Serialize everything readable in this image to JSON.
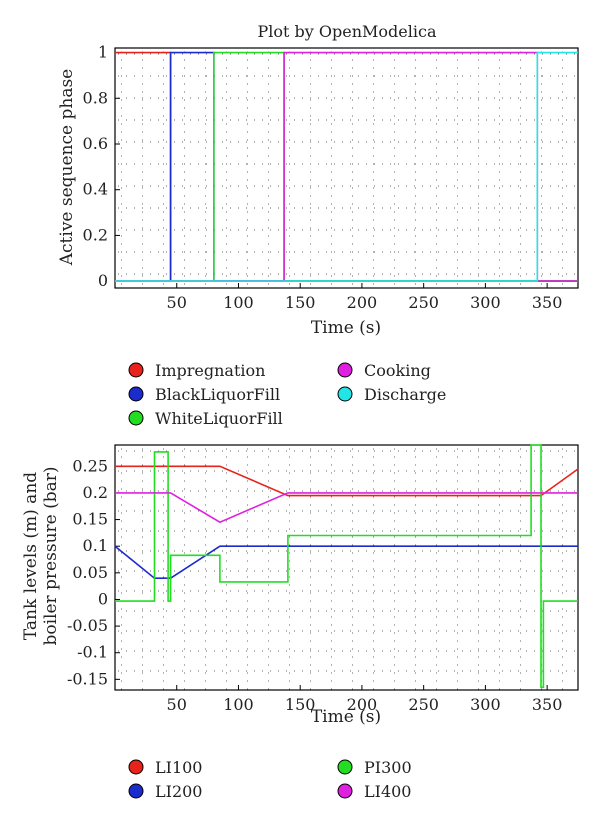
{
  "chart_data": [
    {
      "type": "line",
      "title": "Plot by OpenModelica",
      "xlabel": "Time (s)",
      "ylabel": "Active sequence phase",
      "xlim": [
        0,
        375
      ],
      "ylim": [
        -0.03,
        1.02
      ],
      "xticks": [
        50,
        100,
        150,
        200,
        250,
        300,
        350
      ],
      "yticks": [
        0,
        0.2,
        0.4,
        0.6,
        0.8,
        1
      ],
      "xtick_labels": [
        "50",
        "100",
        "150",
        "200",
        "250",
        "300",
        "350"
      ],
      "ytick_labels": [
        "0",
        "0.2",
        "0.4",
        "0.6",
        "0.8",
        "1"
      ],
      "grid": true,
      "legend_position": "bottom",
      "series": [
        {
          "name": "Impregnation",
          "color": "#e8231c",
          "x": [
            0,
            45,
            45,
            80,
            80,
            137,
            137,
            375
          ],
          "y": [
            1,
            1,
            0,
            0,
            0,
            0,
            0,
            0
          ]
        },
        {
          "name": "BlackLiquorFill",
          "color": "#1c2ccc",
          "x": [
            0,
            45,
            45,
            80,
            80,
            375
          ],
          "y": [
            0,
            0,
            1,
            1,
            0,
            0
          ]
        },
        {
          "name": "WhiteLiquorFill",
          "color": "#22dd22",
          "x": [
            0,
            80,
            80,
            137,
            137,
            375
          ],
          "y": [
            0,
            0,
            1,
            1,
            0,
            0
          ]
        },
        {
          "name": "Cooking",
          "color": "#e020e0",
          "x": [
            0,
            137,
            137,
            342,
            342,
            375
          ],
          "y": [
            0,
            0,
            1,
            1,
            0,
            0
          ]
        },
        {
          "name": "Discharge",
          "color": "#22e6e6",
          "x": [
            0,
            342,
            342,
            375
          ],
          "y": [
            0,
            0,
            1,
            1
          ]
        }
      ]
    },
    {
      "type": "line",
      "title": "",
      "xlabel": "Time (s)",
      "ylabel": "Tank levels (m) and boiler pressure (bar)",
      "ylabel_lines": [
        "Tank levels (m) and",
        "boiler pressure (bar)"
      ],
      "xlim": [
        0,
        375
      ],
      "ylim": [
        -0.17,
        0.29
      ],
      "xticks": [
        50,
        100,
        150,
        200,
        250,
        300,
        350
      ],
      "yticks": [
        0.25,
        0.2,
        0.15,
        0.1,
        0.05,
        0,
        -0.05,
        -0.1,
        -0.15
      ],
      "xtick_labels": [
        "50",
        "100",
        "150",
        "200",
        "250",
        "300",
        "350"
      ],
      "ytick_labels": [
        "0.25",
        "0.2",
        "0.15",
        "0.1",
        "0.05",
        "0",
        "-0.05",
        "-0.1",
        "-0.15"
      ],
      "grid": true,
      "legend_position": "bottom",
      "series": [
        {
          "name": "LI100",
          "color": "#e8231c",
          "x": [
            0,
            85,
            140,
            345,
            375
          ],
          "y": [
            0.25,
            0.25,
            0.195,
            0.195,
            0.245
          ]
        },
        {
          "name": "LI200",
          "color": "#1c2ccc",
          "x": [
            0,
            32,
            45,
            85,
            375
          ],
          "y": [
            0.1,
            0.04,
            0.04,
            0.1,
            0.1
          ]
        },
        {
          "name": "PI300",
          "color": "#22dd22",
          "x": [
            0,
            32,
            32,
            43,
            43,
            45,
            45,
            85,
            85,
            140,
            140,
            337,
            337,
            345,
            345,
            347,
            347,
            375
          ],
          "y": [
            -0.003,
            -0.003,
            0.277,
            0.277,
            -0.003,
            -0.003,
            0.083,
            0.083,
            0.033,
            0.033,
            0.12,
            0.12,
            0.29,
            0.29,
            -0.165,
            -0.165,
            -0.003,
            -0.003
          ]
        },
        {
          "name": "LI400",
          "color": "#e020e0",
          "x": [
            0,
            45,
            85,
            140,
            375
          ],
          "y": [
            0.2,
            0.2,
            0.145,
            0.2,
            0.2
          ]
        }
      ]
    }
  ]
}
